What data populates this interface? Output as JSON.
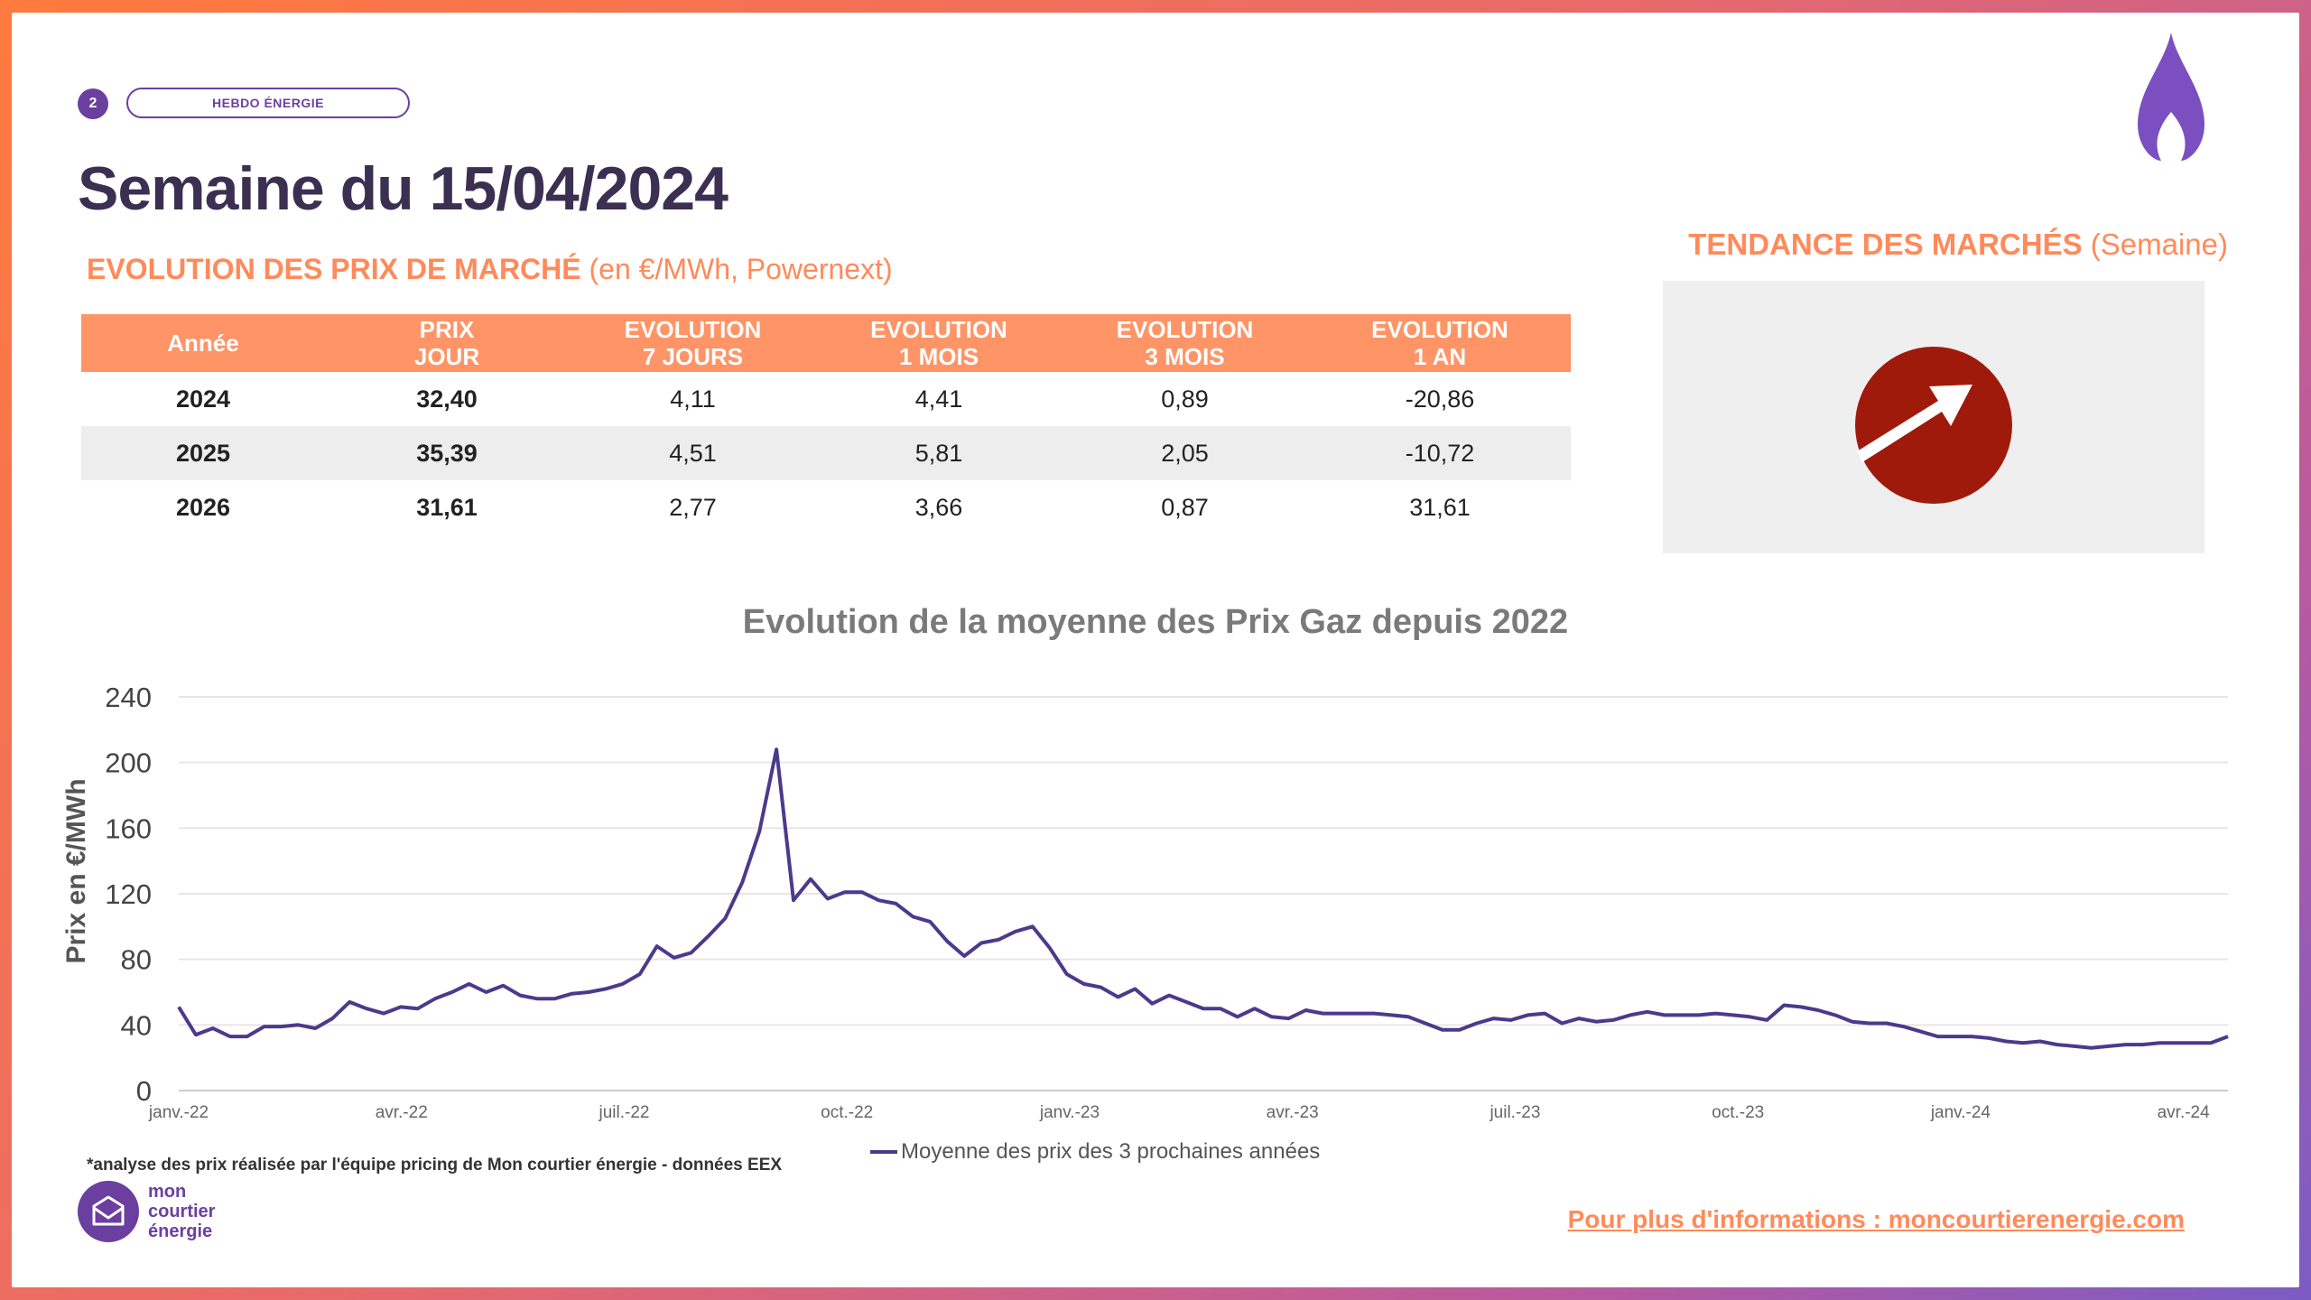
{
  "header": {
    "page_number": "2",
    "tag": "HEBDO ÉNERGIE",
    "title": "Semaine du 15/04/2024",
    "subtitle_strong": "EVOLUTION DES PRIX DE MARCHÉ",
    "subtitle_light": " (en €/MWh, Powernext)"
  },
  "trend": {
    "title_strong": "TENDANCE DES MARCHÉS",
    "title_light": " (Semaine)",
    "icon": "arrow-up-right-icon",
    "color": "#a01a0c"
  },
  "table": {
    "headers": [
      "Année",
      "PRIX\nJOUR",
      "EVOLUTION\n7 JOURS",
      "EVOLUTION\n1 MOIS",
      "EVOLUTION\n3 MOIS",
      "EVOLUTION\n1 AN"
    ],
    "rows": [
      [
        "2024",
        "32,40",
        "4,11",
        "4,41",
        "0,89",
        "-20,86"
      ],
      [
        "2025",
        "35,39",
        "4,51",
        "5,81",
        "2,05",
        "-10,72"
      ],
      [
        "2026",
        "31,61",
        "2,77",
        "3,66",
        "0,87",
        "31,61"
      ]
    ]
  },
  "chart_data": {
    "type": "line",
    "title": "Evolution de la moyenne des Prix Gaz depuis 2022",
    "ylabel": "Prix en €/MWh",
    "xlabel": "",
    "ylim": [
      0,
      240
    ],
    "yticks": [
      0,
      40,
      80,
      120,
      160,
      200,
      240
    ],
    "xtick_labels": [
      "janv.-22",
      "avr.-22",
      "juil.-22",
      "oct.-22",
      "janv.-23",
      "avr.-23",
      "juil.-23",
      "oct.-23",
      "janv.-24",
      "avr.-24"
    ],
    "legend_position": "bottom",
    "series": [
      {
        "name": "Moyenne des prix des 3 prochaines années",
        "color": "#4b3a8c",
        "values": [
          51,
          34,
          38,
          33,
          33,
          39,
          39,
          40,
          38,
          44,
          54,
          50,
          47,
          51,
          50,
          56,
          60,
          65,
          60,
          64,
          58,
          56,
          56,
          59,
          60,
          62,
          65,
          71,
          88,
          81,
          84,
          94,
          105,
          127,
          158,
          208,
          116,
          129,
          117,
          121,
          121,
          116,
          114,
          106,
          103,
          91,
          82,
          90,
          92,
          97,
          100,
          87,
          71,
          65,
          63,
          57,
          62,
          53,
          58,
          54,
          50,
          50,
          45,
          50,
          45,
          44,
          49,
          47,
          47,
          47,
          47,
          46,
          45,
          41,
          37,
          37,
          41,
          44,
          43,
          46,
          47,
          41,
          44,
          42,
          43,
          46,
          48,
          46,
          46,
          46,
          47,
          46,
          45,
          43,
          52,
          51,
          49,
          46,
          42,
          41,
          41,
          39,
          36,
          33,
          33,
          33,
          32,
          30,
          29,
          30,
          28,
          27,
          26,
          27,
          28,
          28,
          29,
          29,
          29,
          29,
          33
        ]
      }
    ]
  },
  "footer": {
    "footnote": "*analyse des prix réalisée par l'équipe pricing de Mon courtier énergie -  données EEX",
    "legend_label": "Moyenne des prix des 3 prochaines années",
    "logo_line1": "mon",
    "logo_line2": "courtier",
    "logo_line3": "énergie",
    "more_info": "Pour plus d'informations : moncourtierenergie.com"
  }
}
